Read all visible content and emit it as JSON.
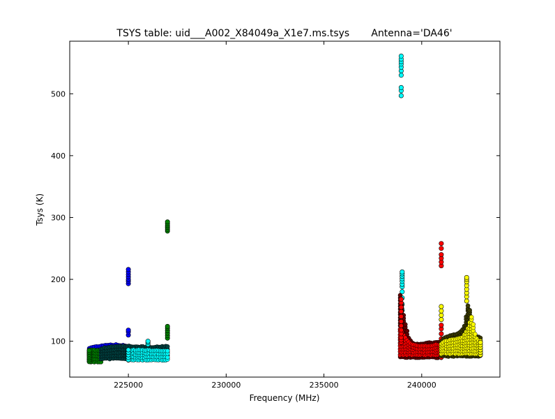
{
  "chart_data": {
    "type": "scatter",
    "title": "TSYS table: uid___A002_X84049a_X1e7.ms.tsys       Antenna='DA46'",
    "xlabel": "Frequency (MHz)",
    "ylabel": "Tsys (K)",
    "xlim": [
      222000,
      244000
    ],
    "ylim": [
      42,
      585
    ],
    "x_ticks": [
      225000,
      230000,
      235000,
      240000
    ],
    "y_ticks": [
      100,
      200,
      300,
      400,
      500
    ],
    "x_tick_labels": [
      "225000",
      "230000",
      "235000",
      "240000"
    ],
    "y_tick_labels": [
      "100",
      "200",
      "300",
      "400",
      "500"
    ],
    "grid": false,
    "legend": "none",
    "colors": {
      "blue": "#0000ff",
      "green": "#008000",
      "cyan": "#00ffff",
      "dark_teal": "#004040",
      "red": "#ff0000",
      "dark_red": "#600000",
      "yellow": "#ffff00",
      "dark_olive": "#3a3a00",
      "marker_edge": "#000000"
    },
    "series": [
      {
        "color": "#0000ff",
        "band_x": [
          223000,
          225000
        ],
        "band_bottom": 79,
        "band_top": [
          89,
          91,
          93,
          94,
          94,
          93,
          92
        ],
        "spikes": [
          {
            "x": 225000,
            "y": [
              193,
              197,
              200,
              204,
              208,
              212,
              216,
              110,
              115,
              118
            ]
          }
        ]
      },
      {
        "color": "#008000",
        "band_x": [
          223000,
          223600
        ],
        "band_bottom": 67,
        "band_top": [
          86,
          86,
          85,
          85
        ],
        "spikes": [
          {
            "x": 223000,
            "y": [
              67,
              70,
              73,
              76,
              79,
              82,
              85
            ]
          },
          {
            "x": 227000,
            "y": [
              278,
              281,
              284,
              287,
              290,
              293,
              105,
              109,
              113,
              117,
              121,
              124
            ]
          }
        ]
      },
      {
        "color": "#004040",
        "band_x": [
          223600,
          227000
        ],
        "band_bottom": 72,
        "band_top": [
          88,
          90,
          91,
          92,
          92,
          91,
          91,
          90,
          90,
          91,
          92
        ],
        "spikes": []
      },
      {
        "color": "#00ffff",
        "band_x": [
          225000,
          227000
        ],
        "band_bottom": 70,
        "band_top": [
          84,
          86,
          86,
          85,
          85,
          84
        ],
        "spikes": [
          {
            "x": 225000,
            "y": [
              70,
              74,
              78,
              82,
              86
            ]
          },
          {
            "x": 226000,
            "y": [
              95,
              98,
              100
            ]
          },
          {
            "x": 238950,
            "y": [
              497,
              505,
              510,
              530,
              537,
              543,
              548,
              552,
              556,
              561
            ]
          },
          {
            "x": 239000,
            "y": [
              130,
              140,
              150,
              160,
              170,
              180,
              188,
              192,
              197,
              201,
              205,
              209,
              212
            ]
          }
        ]
      },
      {
        "color": "#600000",
        "band_x": [
          238900,
          241000
        ],
        "band_bottom": 74,
        "band_top": [
          175,
          130,
          102,
          96,
          95,
          96,
          97,
          97,
          98,
          99
        ],
        "spikes": []
      },
      {
        "color": "#ff0000",
        "band_x": [
          238900,
          241000
        ],
        "band_bottom": 78,
        "band_top": [
          120,
          105,
          96,
          93,
          92,
          92,
          93,
          94,
          95
        ],
        "spikes": [
          {
            "x": 238950,
            "y": [
              98,
              102,
              106,
              112,
              118,
              125,
              132,
              140,
              148,
              155,
              162,
              168
            ]
          },
          {
            "x": 241000,
            "y": [
              74,
              80,
              88,
              96,
              104,
              112,
              120,
              126,
              222,
              228,
              234,
              240,
              250,
              258
            ]
          }
        ]
      },
      {
        "color": "#3a3a00",
        "band_x": [
          241000,
          243000
        ],
        "band_bottom": 76,
        "band_top": [
          100,
          106,
          108,
          110,
          112,
          115,
          125,
          165,
          112,
          108,
          106
        ],
        "spikes": []
      },
      {
        "color": "#ffff00",
        "band_x": [
          241000,
          243000
        ],
        "band_bottom": 80,
        "band_top": [
          96,
          100,
          102,
          103,
          104,
          106,
          118,
          140,
          104,
          100
        ],
        "spikes": [
          {
            "x": 241000,
            "y": [
              135,
              142,
              149,
              156
            ]
          },
          {
            "x": 242300,
            "y": [
              165,
              172,
              178,
              184,
              190,
              196,
              200,
              203
            ]
          },
          {
            "x": 243000,
            "y": [
              78,
              82,
              86,
              90,
              94,
              98
            ]
          }
        ]
      }
    ]
  }
}
